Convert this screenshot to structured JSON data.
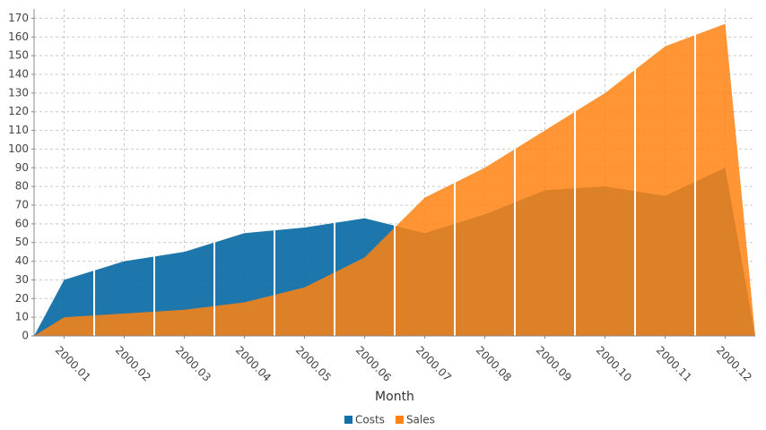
{
  "chart_data": {
    "type": "area",
    "x_label": "Month",
    "categories": [
      "2000.01",
      "2000.02",
      "2000.03",
      "2000.04",
      "2000.05",
      "2000.06",
      "2000.07",
      "2000.08",
      "2000.09",
      "2000.10",
      "2000.11",
      "2000.12"
    ],
    "series": [
      {
        "name": "Costs",
        "color": "#1170a8",
        "values": [
          30,
          40,
          45,
          55,
          58,
          63,
          55,
          65,
          78,
          80,
          75,
          90
        ]
      },
      {
        "name": "Sales",
        "color": "#ff8310",
        "values": [
          10,
          12,
          14,
          18,
          26,
          42,
          74,
          90,
          110,
          130,
          155,
          167
        ]
      }
    ],
    "ylim": [
      0,
      175
    ],
    "yticks": [
      0,
      10,
      20,
      30,
      40,
      50,
      60,
      70,
      80,
      90,
      100,
      110,
      120,
      130,
      140,
      150,
      160,
      170
    ],
    "grid": true,
    "legend": "bottom"
  }
}
